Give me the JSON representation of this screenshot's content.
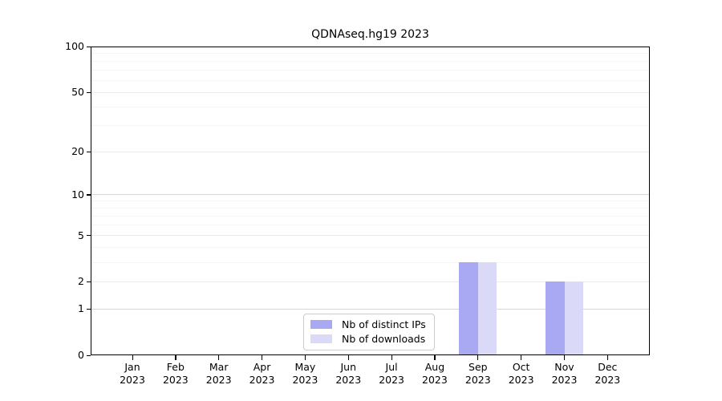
{
  "title": "QDNAseq.hg19 2023",
  "legend": {
    "items": [
      {
        "label": "Nb of distinct IPs",
        "color": "#a9a9f3"
      },
      {
        "label": "Nb of downloads",
        "color": "#dadaf8"
      }
    ]
  },
  "chart_data": {
    "type": "bar",
    "title": "QDNAseq.hg19 2023",
    "categories": [
      "Jan 2023",
      "Feb 2023",
      "Mar 2023",
      "Apr 2023",
      "May 2023",
      "Jun 2023",
      "Jul 2023",
      "Aug 2023",
      "Sep 2023",
      "Oct 2023",
      "Nov 2023",
      "Dec 2023"
    ],
    "months": [
      "Jan",
      "Feb",
      "Mar",
      "Apr",
      "May",
      "Jun",
      "Jul",
      "Aug",
      "Sep",
      "Oct",
      "Nov",
      "Dec"
    ],
    "year_label": "2023",
    "series": [
      {
        "name": "Nb of distinct IPs",
        "color": "#a9a9f3",
        "values": [
          0,
          0,
          0,
          0,
          0,
          0,
          0,
          0,
          3,
          0,
          2,
          0
        ]
      },
      {
        "name": "Nb of downloads",
        "color": "#dadaf8",
        "values": [
          0,
          0,
          0,
          0,
          0,
          0,
          0,
          0,
          3,
          0,
          2,
          0
        ]
      }
    ],
    "xlabel": "",
    "ylabel": "",
    "yscale": "log1p",
    "ylim": [
      0,
      100
    ],
    "yticks": [
      0,
      1,
      2,
      5,
      10,
      20,
      50,
      100
    ],
    "grid": {
      "strong": [
        1,
        10,
        100
      ],
      "medium": [
        2,
        5,
        20,
        50
      ],
      "faint": [
        3,
        4,
        6,
        7,
        8,
        9,
        30,
        40,
        60,
        70,
        80,
        90
      ]
    },
    "legend_position": "bottom-center"
  }
}
